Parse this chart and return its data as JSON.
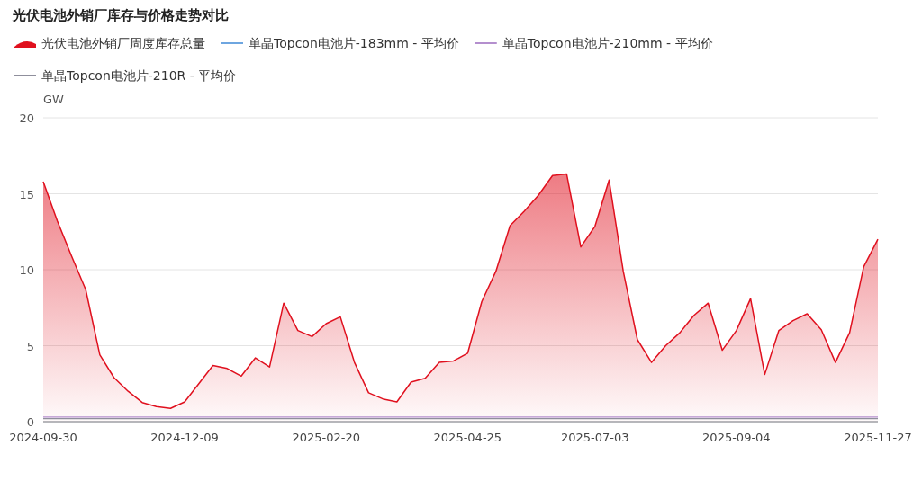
{
  "chart_data": {
    "type": "area",
    "title": "光伏电池外销厂库存与价格走势对比",
    "ylabel": "GW",
    "categories": [
      "2024-09-30",
      null,
      null,
      null,
      null,
      null,
      null,
      null,
      null,
      null,
      "2024-12-09",
      null,
      null,
      null,
      null,
      null,
      null,
      null,
      null,
      null,
      "2025-02-20",
      null,
      null,
      null,
      null,
      null,
      null,
      null,
      null,
      null,
      "2025-04-25",
      null,
      null,
      null,
      null,
      null,
      null,
      null,
      null,
      "2025-07-03",
      null,
      null,
      null,
      null,
      null,
      null,
      null,
      null,
      null,
      "2025-09-04",
      null,
      null,
      null,
      null,
      null,
      null,
      null,
      null,
      null,
      "2025-11-27"
    ],
    "series": [
      {
        "name": "光伏电池外销厂周度库存总量",
        "color": "#e0101e",
        "values": [
          15.8,
          13.2,
          10.9,
          8.7,
          4.4,
          2.9,
          2.0,
          1.26,
          0.99,
          0.87,
          1.3,
          2.5,
          3.7,
          3.5,
          3.0,
          4.2,
          3.6,
          7.8,
          6.0,
          5.6,
          6.45,
          6.9,
          3.9,
          1.9,
          1.5,
          1.3,
          2.6,
          2.85,
          3.9,
          4.0,
          4.5,
          7.9,
          9.9,
          12.9,
          13.85,
          14.9,
          16.2,
          16.3,
          11.5,
          12.85,
          15.9,
          9.9,
          5.4,
          3.9,
          5.0,
          5.85,
          7.0,
          7.8,
          4.7,
          6.0,
          8.1,
          3.1,
          6.0,
          6.65,
          7.1,
          6.05,
          3.9,
          5.85,
          10.2,
          12.0
        ]
      },
      {
        "name": "单晶Topcon电池片-183mm - 平均价",
        "type": "line",
        "color": "#6ea6e0",
        "values": [
          null,
          null,
          null,
          null,
          null,
          null,
          null,
          null,
          null,
          null,
          null,
          null,
          null,
          null,
          null,
          null,
          null,
          null,
          null,
          null,
          null,
          null,
          null,
          null,
          null,
          null,
          null,
          null,
          null,
          null,
          null,
          null,
          null,
          null,
          null,
          null,
          null,
          null,
          null,
          null,
          null,
          null,
          null,
          null,
          null,
          null,
          null,
          null,
          null,
          null,
          null,
          null,
          null,
          null,
          null,
          null,
          null,
          null,
          null,
          null
        ]
      },
      {
        "name": "单晶Topcon电池片-210mm - 平均价",
        "type": "line",
        "color": "#b48fce",
        "values": [
          0.3,
          0.3,
          0.3,
          0.3,
          0.3,
          0.3,
          0.3,
          0.3,
          0.3,
          0.3,
          0.3,
          0.3,
          0.3,
          0.3,
          0.3,
          0.3,
          0.3,
          0.3,
          0.3,
          0.3,
          0.3,
          0.3,
          0.3,
          0.3,
          0.3,
          0.3,
          0.3,
          0.3,
          0.3,
          0.3,
          0.3,
          0.3,
          0.3,
          0.3,
          0.3,
          0.3,
          0.3,
          0.3,
          0.3,
          0.3,
          0.3,
          0.3,
          0.3,
          0.3,
          0.3,
          0.3,
          0.3,
          0.3,
          0.3,
          0.3,
          0.3,
          0.3,
          0.3,
          0.3,
          0.3,
          0.3,
          0.3,
          0.3,
          0.3,
          0.3
        ]
      },
      {
        "name": "单晶Topcon电池片-210R - 平均价",
        "type": "line",
        "color": "#8f8f9c",
        "values": [
          0.2,
          0.2,
          0.2,
          0.2,
          0.2,
          0.2,
          0.2,
          0.2,
          0.2,
          0.2,
          0.2,
          0.2,
          0.2,
          0.2,
          0.2,
          0.2,
          0.2,
          0.2,
          0.2,
          0.2,
          0.2,
          0.2,
          0.2,
          0.2,
          0.2,
          0.2,
          0.2,
          0.2,
          0.2,
          0.2,
          0.2,
          0.2,
          0.2,
          0.2,
          0.2,
          0.2,
          0.2,
          0.2,
          0.2,
          0.2,
          0.2,
          0.2,
          0.2,
          0.2,
          0.2,
          0.2,
          0.2,
          0.2,
          0.2,
          0.2,
          0.2,
          0.2,
          0.2,
          0.2,
          0.2,
          0.2,
          0.2,
          0.2,
          0.2,
          0.2
        ]
      }
    ],
    "ylim": [
      0,
      20
    ],
    "yticks": [
      0,
      5,
      10,
      15,
      20
    ],
    "grid": "y",
    "legend": "top"
  }
}
